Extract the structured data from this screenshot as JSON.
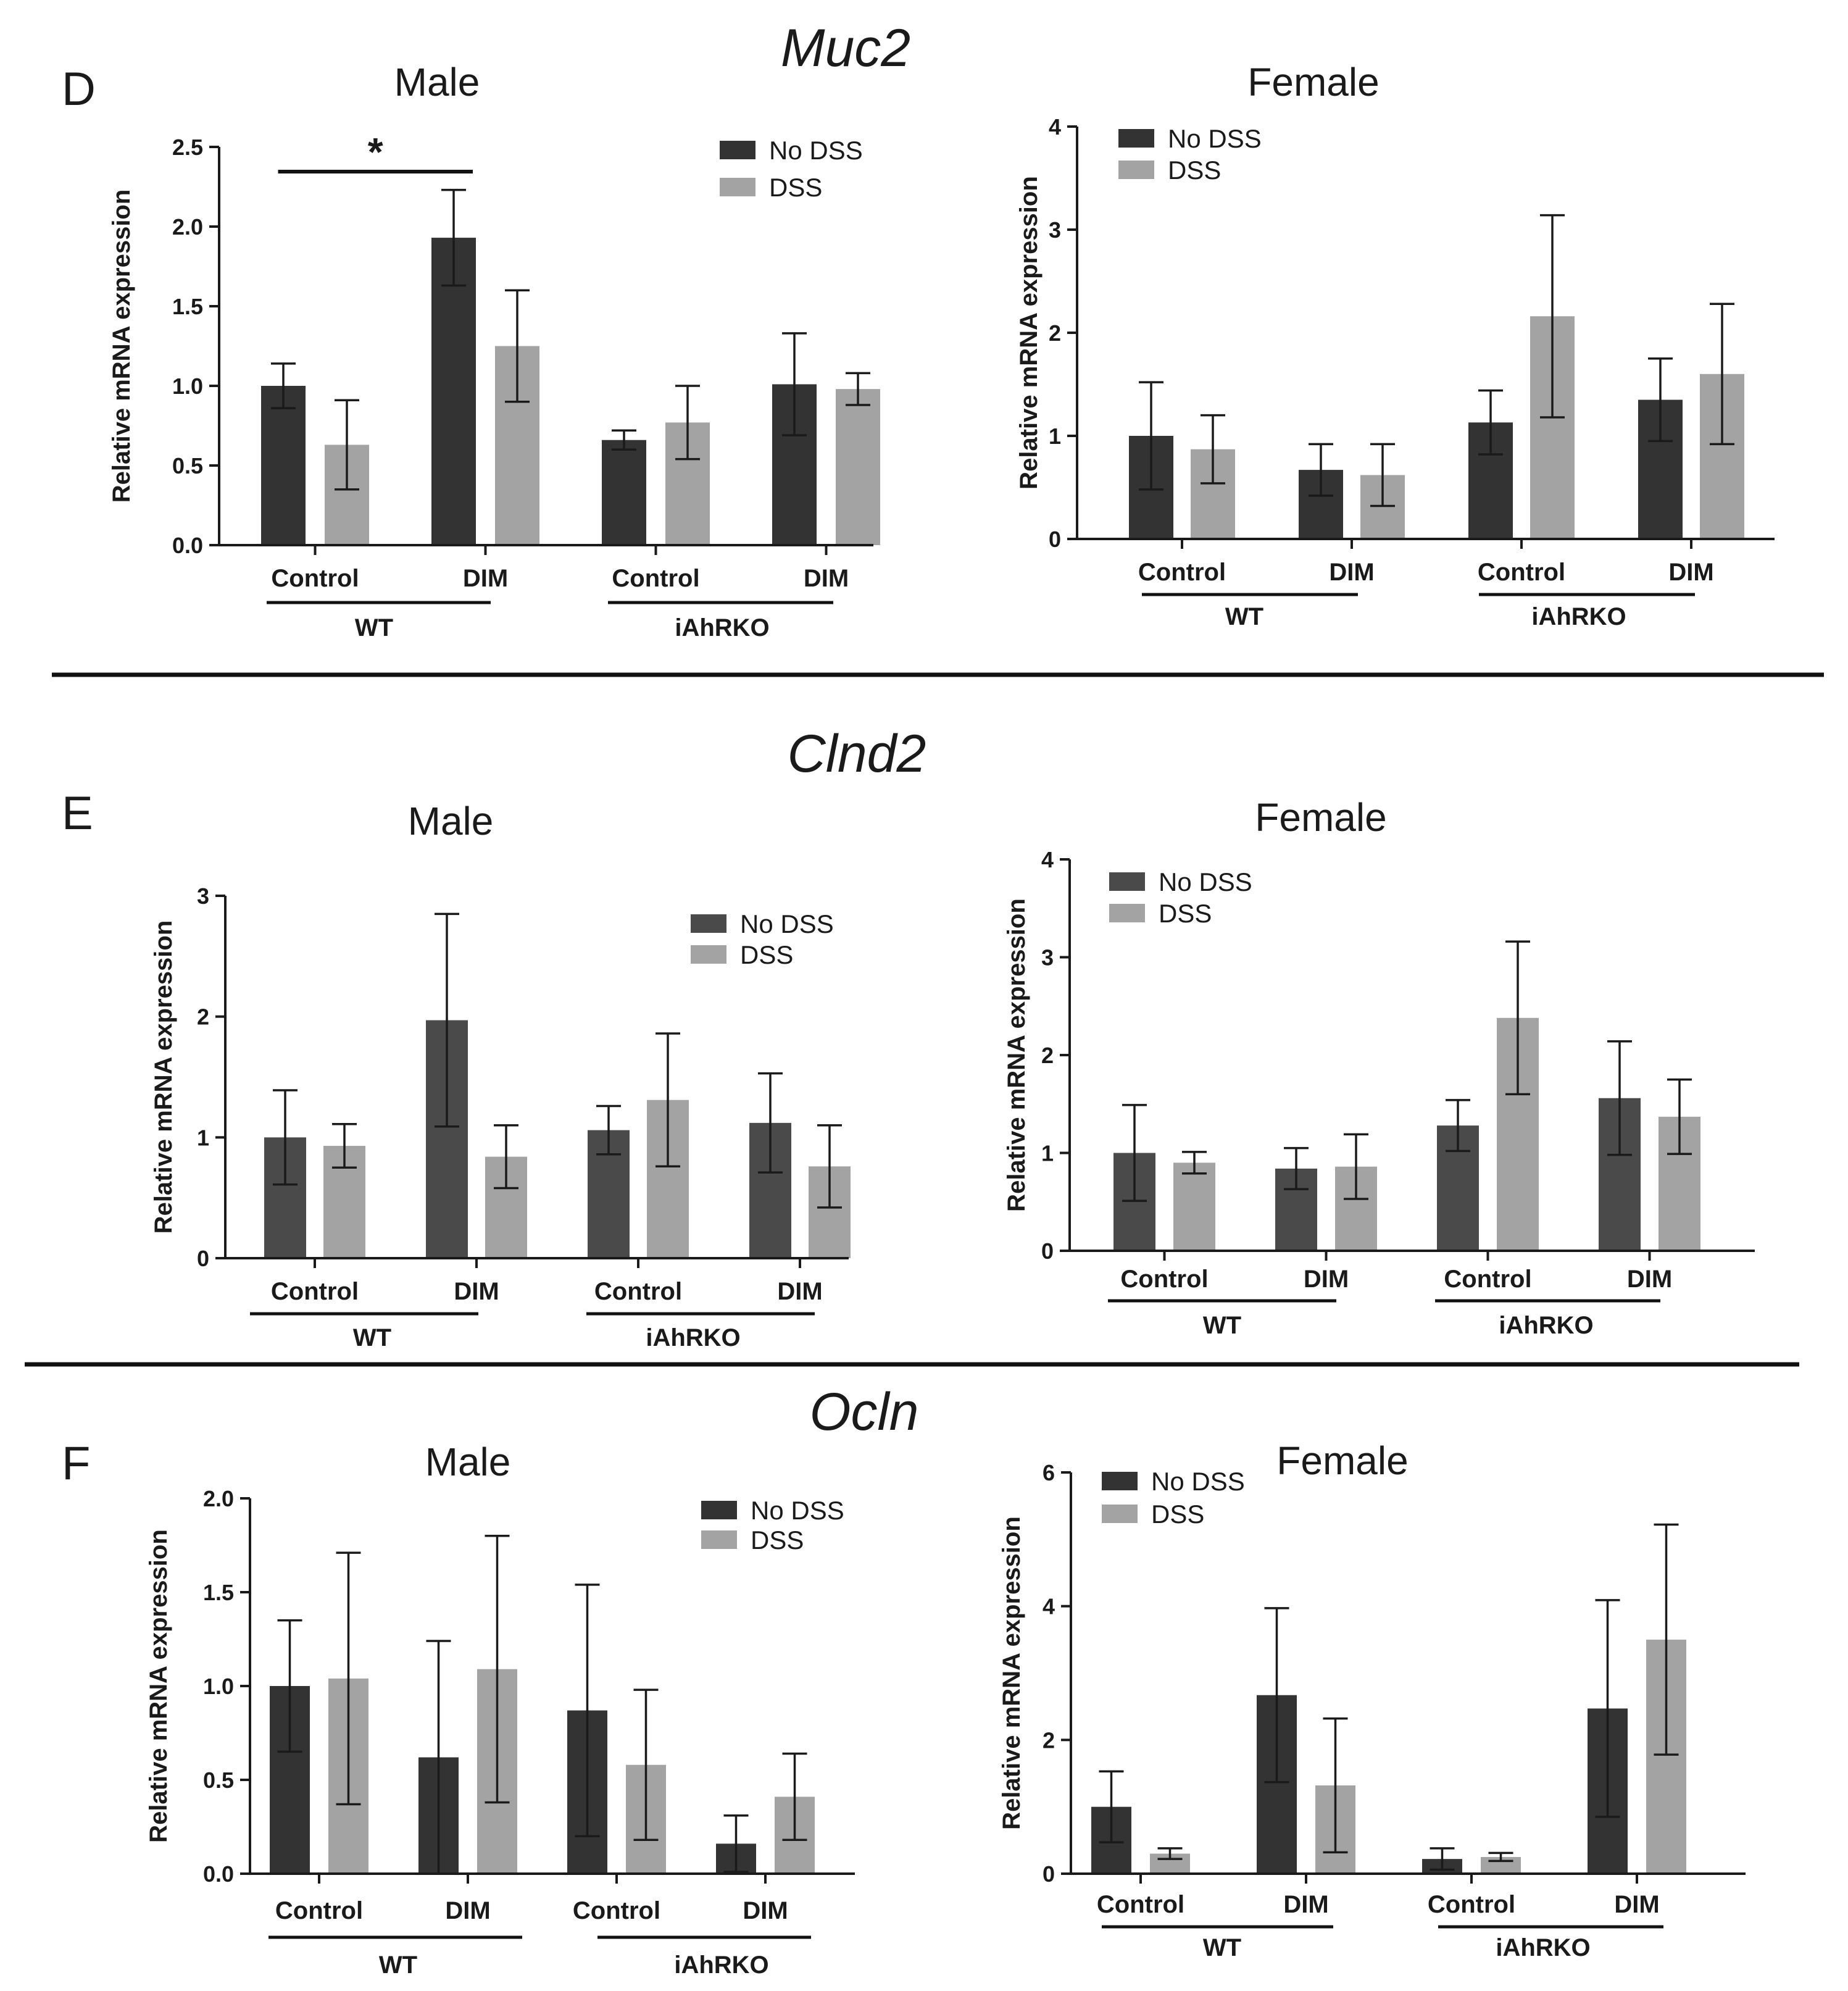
{
  "colors": {
    "no_dss": "#333333",
    "no_dss_alt": "#4a4a4a",
    "dss": "#a3a3a3",
    "axis": "#1a1a1a"
  },
  "chart_data": [
    {
      "type": "bar",
      "panel": "D",
      "gene": "Muc2",
      "title": "Male",
      "ylabel": "Relative mRNA expression",
      "ylim": [
        0,
        2.5
      ],
      "yticks": [
        "0.0",
        "0.5",
        "1.0",
        "1.5",
        "2.0",
        "2.5"
      ],
      "categories": [
        "Control",
        "DIM",
        "Control",
        "DIM"
      ],
      "groups": [
        "WT",
        "iAhRKO"
      ],
      "legend": [
        "No DSS",
        "DSS"
      ],
      "series": [
        {
          "name": "No DSS",
          "values": [
            1.0,
            1.93,
            0.66,
            1.01
          ],
          "errors": [
            0.14,
            0.3,
            0.06,
            0.32
          ]
        },
        {
          "name": "DSS",
          "values": [
            0.63,
            1.25,
            0.77,
            0.98
          ],
          "errors": [
            0.28,
            0.35,
            0.23,
            0.1
          ]
        }
      ],
      "significance": [
        {
          "label": "*",
          "from_category": 0,
          "to_category": 1
        }
      ]
    },
    {
      "type": "bar",
      "panel": "D",
      "gene": "Muc2",
      "title": "Female",
      "ylabel": "Relative mRNA expression",
      "ylim": [
        0,
        4
      ],
      "yticks": [
        "0",
        "1",
        "2",
        "3",
        "4"
      ],
      "categories": [
        "Control",
        "DIM",
        "Control",
        "DIM"
      ],
      "groups": [
        "WT",
        "iAhRKO"
      ],
      "legend": [
        "No DSS",
        "DSS"
      ],
      "series": [
        {
          "name": "No DSS",
          "values": [
            1.0,
            0.67,
            1.13,
            1.35
          ],
          "errors": [
            0.52,
            0.25,
            0.31,
            0.4
          ]
        },
        {
          "name": "DSS",
          "values": [
            0.87,
            0.62,
            2.16,
            1.6
          ],
          "errors": [
            0.33,
            0.3,
            0.98,
            0.68
          ]
        }
      ]
    },
    {
      "type": "bar",
      "panel": "E",
      "gene": "Clnd2",
      "title": "Male",
      "ylabel": "Relative mRNA expression",
      "ylim": [
        0,
        3
      ],
      "yticks": [
        "0",
        "1",
        "2",
        "3"
      ],
      "categories": [
        "Control",
        "DIM",
        "Control",
        "DIM"
      ],
      "groups": [
        "WT",
        "iAhRKO"
      ],
      "legend": [
        "No DSS",
        "DSS"
      ],
      "series": [
        {
          "name": "No DSS",
          "values": [
            1.0,
            1.97,
            1.06,
            1.12
          ],
          "errors": [
            0.39,
            0.88,
            0.2,
            0.41
          ]
        },
        {
          "name": "DSS",
          "values": [
            0.93,
            0.84,
            1.31,
            0.76
          ],
          "errors": [
            0.18,
            0.26,
            0.55,
            0.34
          ]
        }
      ]
    },
    {
      "type": "bar",
      "panel": "E",
      "gene": "Clnd2",
      "title": "Female",
      "ylabel": "Relative mRNA expression",
      "ylim": [
        0,
        4
      ],
      "yticks": [
        "0",
        "1",
        "2",
        "3",
        "4"
      ],
      "categories": [
        "Control",
        "DIM",
        "Control",
        "DIM"
      ],
      "groups": [
        "WT",
        "iAhRKO"
      ],
      "legend": [
        "No DSS",
        "DSS"
      ],
      "series": [
        {
          "name": "No DSS",
          "values": [
            1.0,
            0.84,
            1.28,
            1.56
          ],
          "errors": [
            0.49,
            0.21,
            0.26,
            0.58
          ]
        },
        {
          "name": "DSS",
          "values": [
            0.9,
            0.86,
            2.38,
            1.37
          ],
          "errors": [
            0.11,
            0.33,
            0.78,
            0.38
          ]
        }
      ]
    },
    {
      "type": "bar",
      "panel": "F",
      "gene": "Ocln",
      "title": "Male",
      "ylabel": "Relative mRNA expression",
      "ylim": [
        0,
        2.0
      ],
      "yticks": [
        "0.0",
        "0.5",
        "1.0",
        "1.5",
        "2.0"
      ],
      "categories": [
        "Control",
        "DIM",
        "Control",
        "DIM"
      ],
      "groups": [
        "WT",
        "iAhRKO"
      ],
      "legend": [
        "No DSS",
        "DSS"
      ],
      "series": [
        {
          "name": "No DSS",
          "values": [
            1.0,
            0.62,
            0.87,
            0.16
          ],
          "errors": [
            0.35,
            0.62,
            0.67,
            0.15
          ]
        },
        {
          "name": "DSS",
          "values": [
            1.04,
            1.09,
            0.58,
            0.41
          ],
          "errors": [
            0.67,
            0.71,
            0.4,
            0.23
          ]
        }
      ]
    },
    {
      "type": "bar",
      "panel": "F",
      "gene": "Ocln",
      "title": "Female",
      "ylabel": "Relative mRNA expression",
      "ylim": [
        0,
        6
      ],
      "yticks": [
        "0",
        "2",
        "4",
        "6"
      ],
      "categories": [
        "Control",
        "DIM",
        "Control",
        "DIM"
      ],
      "groups": [
        "WT",
        "iAhRKO"
      ],
      "legend": [
        "No DSS",
        "DSS"
      ],
      "series": [
        {
          "name": "No DSS",
          "values": [
            1.0,
            2.67,
            0.22,
            2.47
          ],
          "errors": [
            0.53,
            1.3,
            0.16,
            1.62
          ]
        },
        {
          "name": "DSS",
          "values": [
            0.3,
            1.32,
            0.25,
            3.5
          ],
          "errors": [
            0.08,
            1.0,
            0.06,
            1.72
          ]
        }
      ]
    }
  ]
}
